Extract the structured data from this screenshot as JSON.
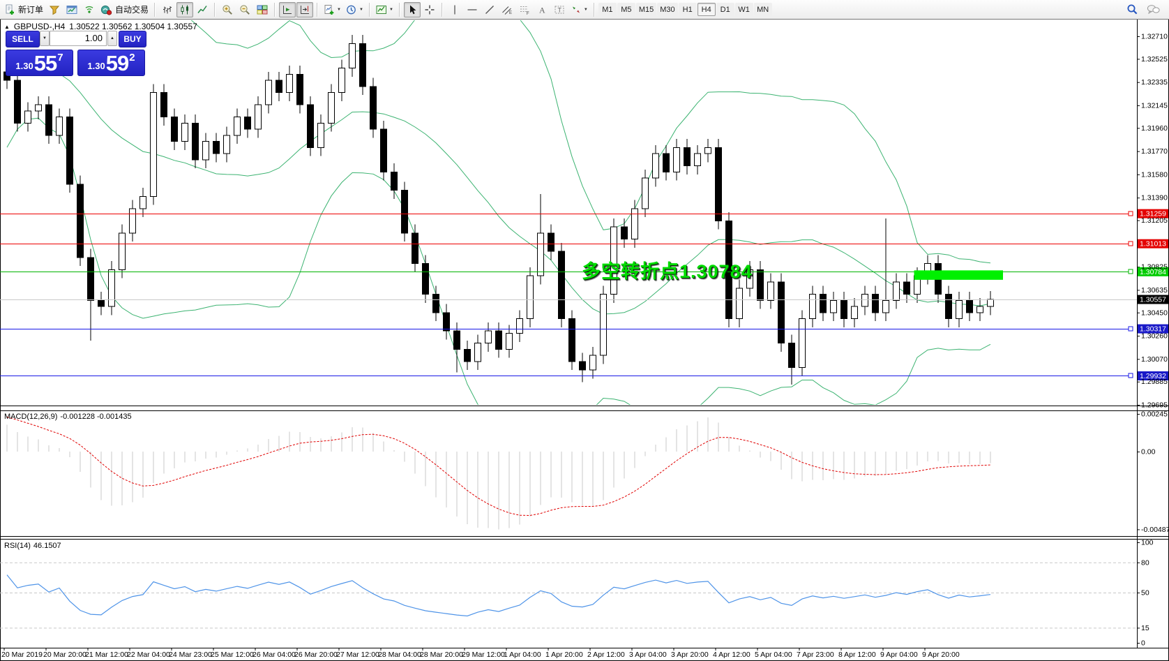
{
  "icons": {
    "dropdown": "▼",
    "spin_up": "▲",
    "spin_down": "▼",
    "collapse": "▲"
  },
  "toolbar": {
    "new_order_label": "新订单",
    "autotrade_label": "自动交易",
    "timeframes": [
      "M1",
      "M5",
      "M15",
      "M30",
      "H1",
      "H4",
      "D1",
      "W1",
      "MN"
    ],
    "active_timeframe": "H4"
  },
  "header": {
    "symbol": "GBPUSD-,H4",
    "ohlc": "1.30522 1.30562 1.30504 1.30557"
  },
  "trade_panel": {
    "sell_label": "SELL",
    "buy_label": "BUY",
    "volume": "1.00",
    "sell_price": {
      "base": "1.30",
      "big": "55",
      "sup": "7"
    },
    "buy_price": {
      "base": "1.30",
      "big": "59",
      "sup": "2"
    }
  },
  "indicators": {
    "macd": {
      "name": "MACD(12,26,9)",
      "values": "-0.001228 -0.001435"
    },
    "rsi": {
      "name": "RSI(14)",
      "values": "46.1507"
    }
  },
  "annotation": {
    "text": "多空转折点1.30784",
    "color": "#00DC00"
  },
  "chart_data": {
    "type": "candlestick",
    "symbol": "GBPUSD-",
    "timeframe": "H4",
    "price_axis": {
      "visible_min": 1.29695,
      "visible_max": 1.3271,
      "ticks": [
        "1.32710",
        "1.32525",
        "1.32335",
        "1.32145",
        "1.31960",
        "1.31770",
        "1.31580",
        "1.31390",
        "1.31205",
        "1.30825",
        "1.30635",
        "1.30450",
        "1.30260",
        "1.30070",
        "1.29885",
        "1.29695"
      ]
    },
    "x_axis": {
      "labels": [
        "20 Mar 2019",
        "20 Mar 20:00",
        "21 Mar 12:00",
        "22 Mar 04:00",
        "24 Mar 23:00",
        "25 Mar 12:00",
        "26 Mar 04:00",
        "26 Mar 20:00",
        "27 Mar 12:00",
        "28 Mar 04:00",
        "28 Mar 20:00",
        "29 Mar 12:00",
        "1 Apr 04:00",
        "1 Apr 20:00",
        "2 Apr 12:00",
        "3 Apr 04:00",
        "3 Apr 20:00",
        "4 Apr 12:00",
        "5 Apr 04:00",
        "7 Apr 23:00",
        "8 Apr 12:00",
        "9 Apr 04:00",
        "9 Apr 20:00"
      ]
    },
    "candles": {
      "first_open": 1.3242,
      "closes": [
        1.3235,
        1.32,
        1.321,
        1.3215,
        1.319,
        1.3205,
        1.315,
        1.309,
        1.3055,
        1.305,
        1.308,
        1.311,
        1.313,
        1.314,
        1.3225,
        1.3205,
        1.3185,
        1.32,
        1.317,
        1.3185,
        1.3175,
        1.319,
        1.3205,
        1.3195,
        1.3215,
        1.3235,
        1.3225,
        1.324,
        1.3215,
        1.318,
        1.32,
        1.3225,
        1.3245,
        1.3265,
        1.323,
        1.3195,
        1.316,
        1.3145,
        1.311,
        1.3085,
        1.306,
        1.3045,
        1.303,
        1.3015,
        1.3005,
        1.302,
        1.303,
        1.3015,
        1.3028,
        1.304,
        1.3075,
        1.311,
        1.3095,
        1.304,
        1.3005,
        1.2998,
        1.301,
        1.306,
        1.3115,
        1.3105,
        1.313,
        1.3155,
        1.3175,
        1.316,
        1.318,
        1.3165,
        1.3175,
        1.318,
        1.312,
        1.304,
        1.3065,
        1.308,
        1.3055,
        1.307,
        1.302,
        1.3,
        1.304,
        1.306,
        1.3045,
        1.3055,
        1.304,
        1.305,
        1.306,
        1.3045,
        1.3055,
        1.307,
        1.306,
        1.3075,
        1.3085,
        1.306,
        1.304,
        1.3055,
        1.3045,
        1.305,
        1.30557
      ],
      "pre_closes": [
        1.315,
        1.318,
        1.321,
        1.323,
        1.325,
        1.327,
        1.328,
        1.3275,
        1.3265,
        1.3255,
        1.3245,
        1.324,
        1.325,
        1.326,
        1.3255,
        1.3245,
        1.324,
        1.3235,
        1.324
      ],
      "wick_overrides": {
        "8": {
          "low": 1.3022
        },
        "33": {
          "high": 1.3272
        },
        "43": {
          "low": 1.2996
        },
        "44": {
          "low": 1.2998
        },
        "51": {
          "high": 1.3142
        },
        "55": {
          "low": 1.2988
        },
        "75": {
          "low": 1.2986
        },
        "84": {
          "high": 1.3122
        }
      }
    },
    "bollinger": {
      "period": 20,
      "deviation": 2,
      "color": "#3CB371"
    },
    "levels": [
      {
        "price": 1.31259,
        "label": "1.31259",
        "color": "#EE0000",
        "badge_bg": "#E40000"
      },
      {
        "price": 1.31013,
        "label": "1.31013",
        "color": "#EE0000",
        "badge_bg": "#E40000"
      },
      {
        "price": 1.30784,
        "label": "1.30784",
        "color": "#00B400",
        "badge_bg": "#00CC00"
      },
      {
        "price": 1.30557,
        "label": "1.30557",
        "color": "#C8C8C8",
        "badge_bg": "#000000",
        "current": true
      },
      {
        "price": 1.30317,
        "label": "1.30317",
        "color": "#1818E6",
        "badge_bg": "#1A1AC8"
      },
      {
        "price": 1.29932,
        "label": "1.29932",
        "color": "#1818E6",
        "badge_bg": "#1A1AC8"
      }
    ],
    "highlight_rect": {
      "start_bar": 86.7,
      "end_bar": 95.2,
      "price_top": 1.30795,
      "price_bottom": 1.30718,
      "color": "#00F000"
    },
    "macd": {
      "axis_ticks": [
        {
          "value": 0.00245,
          "label": "0.00245"
        },
        {
          "value": 0,
          "label": "0.00"
        },
        {
          "value": -0.004874,
          "label": "-0.004874"
        }
      ],
      "histogram_color": "#C8C8C8",
      "signal_color": "#E00000"
    },
    "rsi": {
      "period": 14,
      "color": "#4F94E8",
      "levels": [
        80,
        50,
        15
      ],
      "axis_labels": [
        {
          "value": 100,
          "label": "100"
        },
        {
          "value": 80,
          "label": "80"
        },
        {
          "value": 50,
          "label": "50"
        },
        {
          "value": 15,
          "label": "15"
        },
        {
          "value": 0,
          "label": "0"
        }
      ]
    }
  }
}
